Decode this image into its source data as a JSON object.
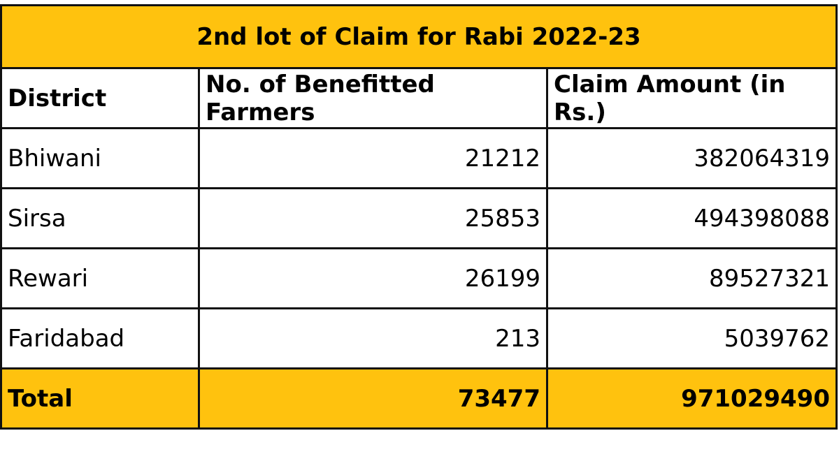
{
  "table": {
    "title": "2nd lot of Claim for Rabi 2022-23",
    "header": [
      "District",
      "No. of Benefitted Farmers",
      "Claim Amount (in Rs.)"
    ],
    "rows": [
      [
        "Bhiwani",
        21212,
        382064319
      ],
      [
        "Sirsa",
        25853,
        494398088
      ],
      [
        "Rewari",
        26199,
        89527321
      ],
      [
        "Faridabad",
        213,
        5039762
      ]
    ],
    "total": [
      "Total",
      73477,
      971029490
    ]
  }
}
